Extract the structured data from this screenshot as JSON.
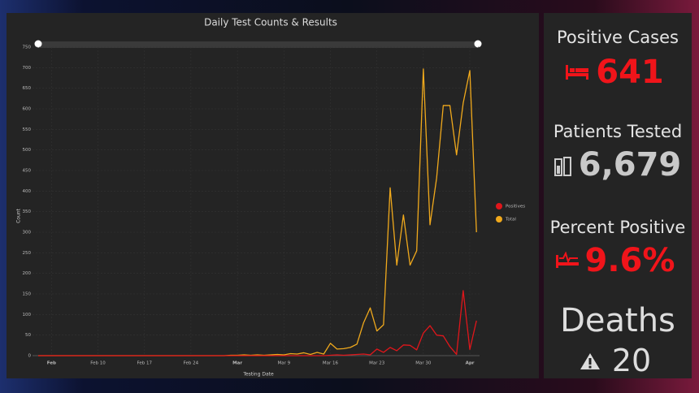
{
  "chart_data": {
    "type": "line",
    "title": "Daily Test Counts & Results",
    "x_label": "Testing Date",
    "y_label": "Count",
    "categories": [
      null,
      null,
      "Feb",
      null,
      null,
      null,
      null,
      null,
      null,
      "Feb 10",
      null,
      null,
      null,
      null,
      null,
      null,
      "Feb 17",
      null,
      null,
      null,
      null,
      null,
      null,
      "Feb 24",
      null,
      null,
      null,
      null,
      null,
      null,
      "Mar",
      null,
      null,
      null,
      null,
      null,
      null,
      "Mar 9",
      null,
      null,
      null,
      null,
      null,
      null,
      "Mar 16",
      null,
      null,
      null,
      null,
      null,
      null,
      "Mar 23",
      null,
      null,
      null,
      null,
      null,
      null,
      "Mar 30",
      null,
      null,
      null,
      null,
      null,
      null,
      "Apr",
      null
    ],
    "series": [
      {
        "name": "Positives",
        "color": "#e0161b",
        "values": [
          0,
          0,
          0,
          0,
          0,
          0,
          0,
          0,
          0,
          0,
          0,
          0,
          0,
          0,
          0,
          0,
          0,
          0,
          0,
          0,
          0,
          0,
          0,
          0,
          0,
          0,
          0,
          0,
          0,
          0,
          0,
          0,
          0,
          0,
          0,
          0,
          0,
          0,
          0,
          0,
          0,
          0,
          0,
          0,
          1,
          2,
          1,
          2,
          3,
          4,
          2,
          16,
          8,
          20,
          12,
          26,
          25,
          14,
          55,
          73,
          50,
          48,
          22,
          3,
          158,
          15,
          85
        ]
      },
      {
        "name": "Total",
        "color": "#f0a91c",
        "values": [
          0,
          0,
          0,
          0,
          0,
          0,
          0,
          0,
          0,
          0,
          0,
          0,
          0,
          0,
          0,
          0,
          0,
          0,
          0,
          0,
          0,
          0,
          0,
          0,
          0,
          0,
          0,
          0,
          0,
          1,
          1,
          2,
          1,
          2,
          1,
          2,
          3,
          2,
          5,
          4,
          7,
          3,
          8,
          4,
          30,
          16,
          17,
          20,
          28,
          80,
          116,
          60,
          75,
          408,
          220,
          342,
          220,
          255,
          697,
          318,
          432,
          608,
          608,
          488,
          614,
          693,
          300
        ]
      }
    ],
    "ylim": [
      0,
      750
    ],
    "yticks": [
      0,
      50,
      100,
      150,
      200,
      250,
      300,
      350,
      400,
      450,
      500,
      550,
      600,
      650,
      700,
      750
    ],
    "grid": true
  },
  "panels": [
    {
      "label": "Positive Cases",
      "value": "641"
    },
    {
      "label": "Patients Tested",
      "value": "6,679"
    },
    {
      "label": "Percent Positive",
      "value": "9.6%"
    },
    {
      "label": "Deaths",
      "value": "20"
    }
  ]
}
